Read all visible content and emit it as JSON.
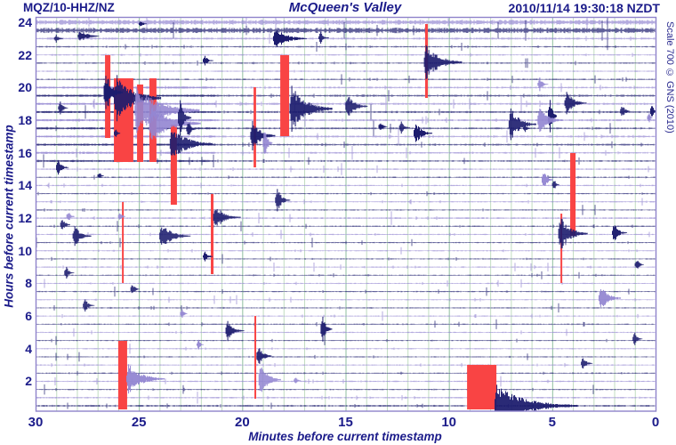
{
  "header": {
    "station": "MQZ/10-HHZ/NZ",
    "title": "McQueen's Valley",
    "timestamp": "2010/11/14 19:30:18 NZDT"
  },
  "scale_label": "Scale 700 © GNS (2010)",
  "axes": {
    "y_label": "Hours before current timestamp",
    "x_label": "Minutes before current timestamp",
    "y_ticks": [
      24,
      22,
      20,
      18,
      16,
      14,
      12,
      10,
      8,
      6,
      4,
      2
    ],
    "x_ticks": [
      30,
      25,
      20,
      15,
      10,
      5,
      0
    ]
  },
  "colors": {
    "navy": "#1c1c6e",
    "purple": "#9487d2",
    "red": "#f94444",
    "grid_minor": "#c2ddc2",
    "grid_major": "#8fbf9f",
    "border": "#8f83cb",
    "text": "#1b1b8a",
    "background": "#ffffff"
  },
  "chart_data": {
    "type": "line",
    "kind": "helicorder_drum_seismogram",
    "station": "MQZ/10-HHZ/NZ",
    "location": "McQueen's Valley",
    "timestamp": "2010/11/14 19:30:18 NZDT",
    "scale": 700,
    "lines": 48,
    "minutes_per_line": 30,
    "x_axis": {
      "label": "Minutes before current timestamp",
      "range": [
        30,
        0
      ]
    },
    "y_axis": {
      "label": "Hours before current timestamp",
      "range": [
        24,
        0
      ]
    },
    "grid": {
      "vertical_every_min": 1,
      "major_every_min": 5
    },
    "trace_colors_alternate": [
      "purple",
      "navy"
    ],
    "noise_levels": [
      2.3,
      2.6,
      1.0,
      0.7,
      0.65,
      0.65,
      0.6,
      0.7,
      0.85,
      0.95,
      1.0,
      1.0,
      0.95,
      0.9,
      0.9,
      0.85,
      0.8,
      0.75,
      0.7,
      0.65,
      0.65,
      0.6,
      0.6,
      0.6,
      0.8,
      0.65,
      0.6,
      0.6,
      0.55,
      0.55,
      0.6,
      0.55,
      0.55,
      0.6,
      0.55,
      0.6,
      0.55,
      0.6,
      0.6,
      0.55,
      0.6,
      0.55,
      0.6,
      0.6,
      0.65,
      0.6,
      0.7,
      0.9
    ],
    "noise_bands_format": [
      "line_from",
      "line_to",
      "m_start",
      "m_end",
      "amp_px"
    ],
    "noise_bands": [
      [
        8,
        17,
        30,
        21.3,
        1.1
      ]
    ],
    "events_format": [
      "minutes_before",
      "line_index",
      "amplitude_px",
      "coda_px",
      "color n=navy p=purple"
    ],
    "events": [
      [
        27.85,
        1.7,
        7,
        25,
        "n"
      ],
      [
        24.9,
        0.2,
        4,
        8,
        "n"
      ],
      [
        18.4,
        2.0,
        13,
        35,
        "n"
      ],
      [
        16.2,
        1.9,
        7,
        10,
        "n"
      ],
      [
        21.8,
        4.7,
        6,
        10,
        "n"
      ],
      [
        11.1,
        4.9,
        22,
        40,
        "n"
      ],
      [
        26.6,
        8.6,
        26,
        18,
        "n"
      ],
      [
        26.1,
        9.3,
        28,
        50,
        "n"
      ],
      [
        25.1,
        10.8,
        28,
        70,
        "p"
      ],
      [
        24.4,
        12.4,
        24,
        55,
        "p"
      ],
      [
        23.4,
        14.9,
        20,
        45,
        "n"
      ],
      [
        23.0,
        11.7,
        22,
        12,
        "n"
      ],
      [
        22.6,
        13.1,
        10,
        8,
        "n"
      ],
      [
        17.6,
        10.6,
        26,
        45,
        "n"
      ],
      [
        14.9,
        10.3,
        15,
        22,
        "n"
      ],
      [
        19.5,
        13.9,
        18,
        25,
        "n"
      ],
      [
        18.9,
        14.8,
        20,
        8,
        "p"
      ],
      [
        28.8,
        10.5,
        9,
        8,
        "n"
      ],
      [
        28.9,
        17.8,
        9,
        12,
        "n"
      ],
      [
        26.9,
        18.8,
        4,
        6,
        "n"
      ],
      [
        26.1,
        13.6,
        6,
        5,
        "n"
      ],
      [
        13.3,
        12.8,
        6,
        8,
        "n"
      ],
      [
        12.3,
        12.9,
        7,
        10,
        "n"
      ],
      [
        11.6,
        13.6,
        13,
        18,
        "n"
      ],
      [
        7.0,
        12.5,
        19,
        28,
        "n"
      ],
      [
        6.3,
        13.0,
        5,
        6,
        "n"
      ],
      [
        5.6,
        7.6,
        8,
        9,
        "p"
      ],
      [
        4.3,
        9.9,
        14,
        22,
        "n"
      ],
      [
        5.1,
        11.5,
        24,
        7,
        "n"
      ],
      [
        5.6,
        12.0,
        16,
        26,
        "p"
      ],
      [
        1.6,
        10.9,
        8,
        9,
        "n"
      ],
      [
        0.15,
        10.9,
        10,
        4,
        "n"
      ],
      [
        0.3,
        11.7,
        6,
        4,
        "p"
      ],
      [
        5.4,
        19.3,
        12,
        10,
        "p"
      ],
      [
        4.9,
        19.9,
        7,
        6,
        "n"
      ],
      [
        21.3,
        23.9,
        15,
        28,
        "n"
      ],
      [
        21.8,
        28.7,
        6,
        10,
        "n"
      ],
      [
        18.3,
        21.8,
        15,
        14,
        "n"
      ],
      [
        28.4,
        23.8,
        7,
        7,
        "p"
      ],
      [
        28.7,
        24.8,
        8,
        9,
        "n"
      ],
      [
        25.9,
        23.8,
        6,
        6,
        "p"
      ],
      [
        28.1,
        26.2,
        13,
        18,
        "n"
      ],
      [
        23.9,
        26.2,
        15,
        32,
        "n"
      ],
      [
        28.5,
        30.7,
        8,
        8,
        "n"
      ],
      [
        25.3,
        32.7,
        7,
        8,
        "n"
      ],
      [
        27.6,
        34.7,
        8,
        10,
        "n"
      ],
      [
        4.6,
        25.9,
        20,
        30,
        "n"
      ],
      [
        2.0,
        25.8,
        11,
        14,
        "n"
      ],
      [
        0.9,
        29.7,
        7,
        8,
        "n"
      ],
      [
        2.65,
        33.8,
        15,
        22,
        "p"
      ],
      [
        22.9,
        35.7,
        6,
        6,
        "p"
      ],
      [
        22.1,
        39.5,
        6,
        6,
        "p"
      ],
      [
        20.7,
        37.8,
        11,
        18,
        "n"
      ],
      [
        16.1,
        37.6,
        17,
        10,
        "n"
      ],
      [
        19.2,
        40.9,
        13,
        14,
        "n"
      ],
      [
        19.1,
        43.8,
        20,
        22,
        "p"
      ],
      [
        25.5,
        43.7,
        18,
        40,
        "p"
      ],
      [
        17.4,
        43.9,
        5,
        6,
        "p"
      ],
      [
        1.0,
        38.8,
        8,
        8,
        "n"
      ],
      [
        3.5,
        41.8,
        8,
        10,
        "n"
      ],
      [
        7.68,
        47.0,
        24,
        90,
        "n"
      ],
      [
        29.0,
        2.0,
        5,
        10,
        "n"
      ]
    ],
    "clips_format": [
      "m_start",
      "m_end",
      "line_top",
      "line_bottom"
    ],
    "clips": [
      [
        26.64,
        26.38,
        4.03,
        14.18
      ],
      [
        26.21,
        25.27,
        6.87,
        17.12
      ],
      [
        25.09,
        24.79,
        7.63,
        17.12
      ],
      [
        24.49,
        24.15,
        6.87,
        17.12
      ],
      [
        23.46,
        23.16,
        12.54,
        22.36
      ],
      [
        21.52,
        21.39,
        21.05,
        30.86
      ],
      [
        25.82,
        25.74,
        22.03,
        31.95
      ],
      [
        19.45,
        19.33,
        7.96,
        17.78
      ],
      [
        18.16,
        17.73,
        4.03,
        13.96
      ],
      [
        11.15,
        11.02,
        0.22,
        9.27
      ],
      [
        4.13,
        3.87,
        16.03,
        26.17
      ],
      [
        4.6,
        4.52,
        23.45,
        31.95
      ],
      [
        26.0,
        25.57,
        39.04,
        47.44
      ],
      [
        19.41,
        19.33,
        35.99,
        46.13
      ],
      [
        9.12,
        7.7,
        41.98,
        47.44
      ]
    ]
  }
}
